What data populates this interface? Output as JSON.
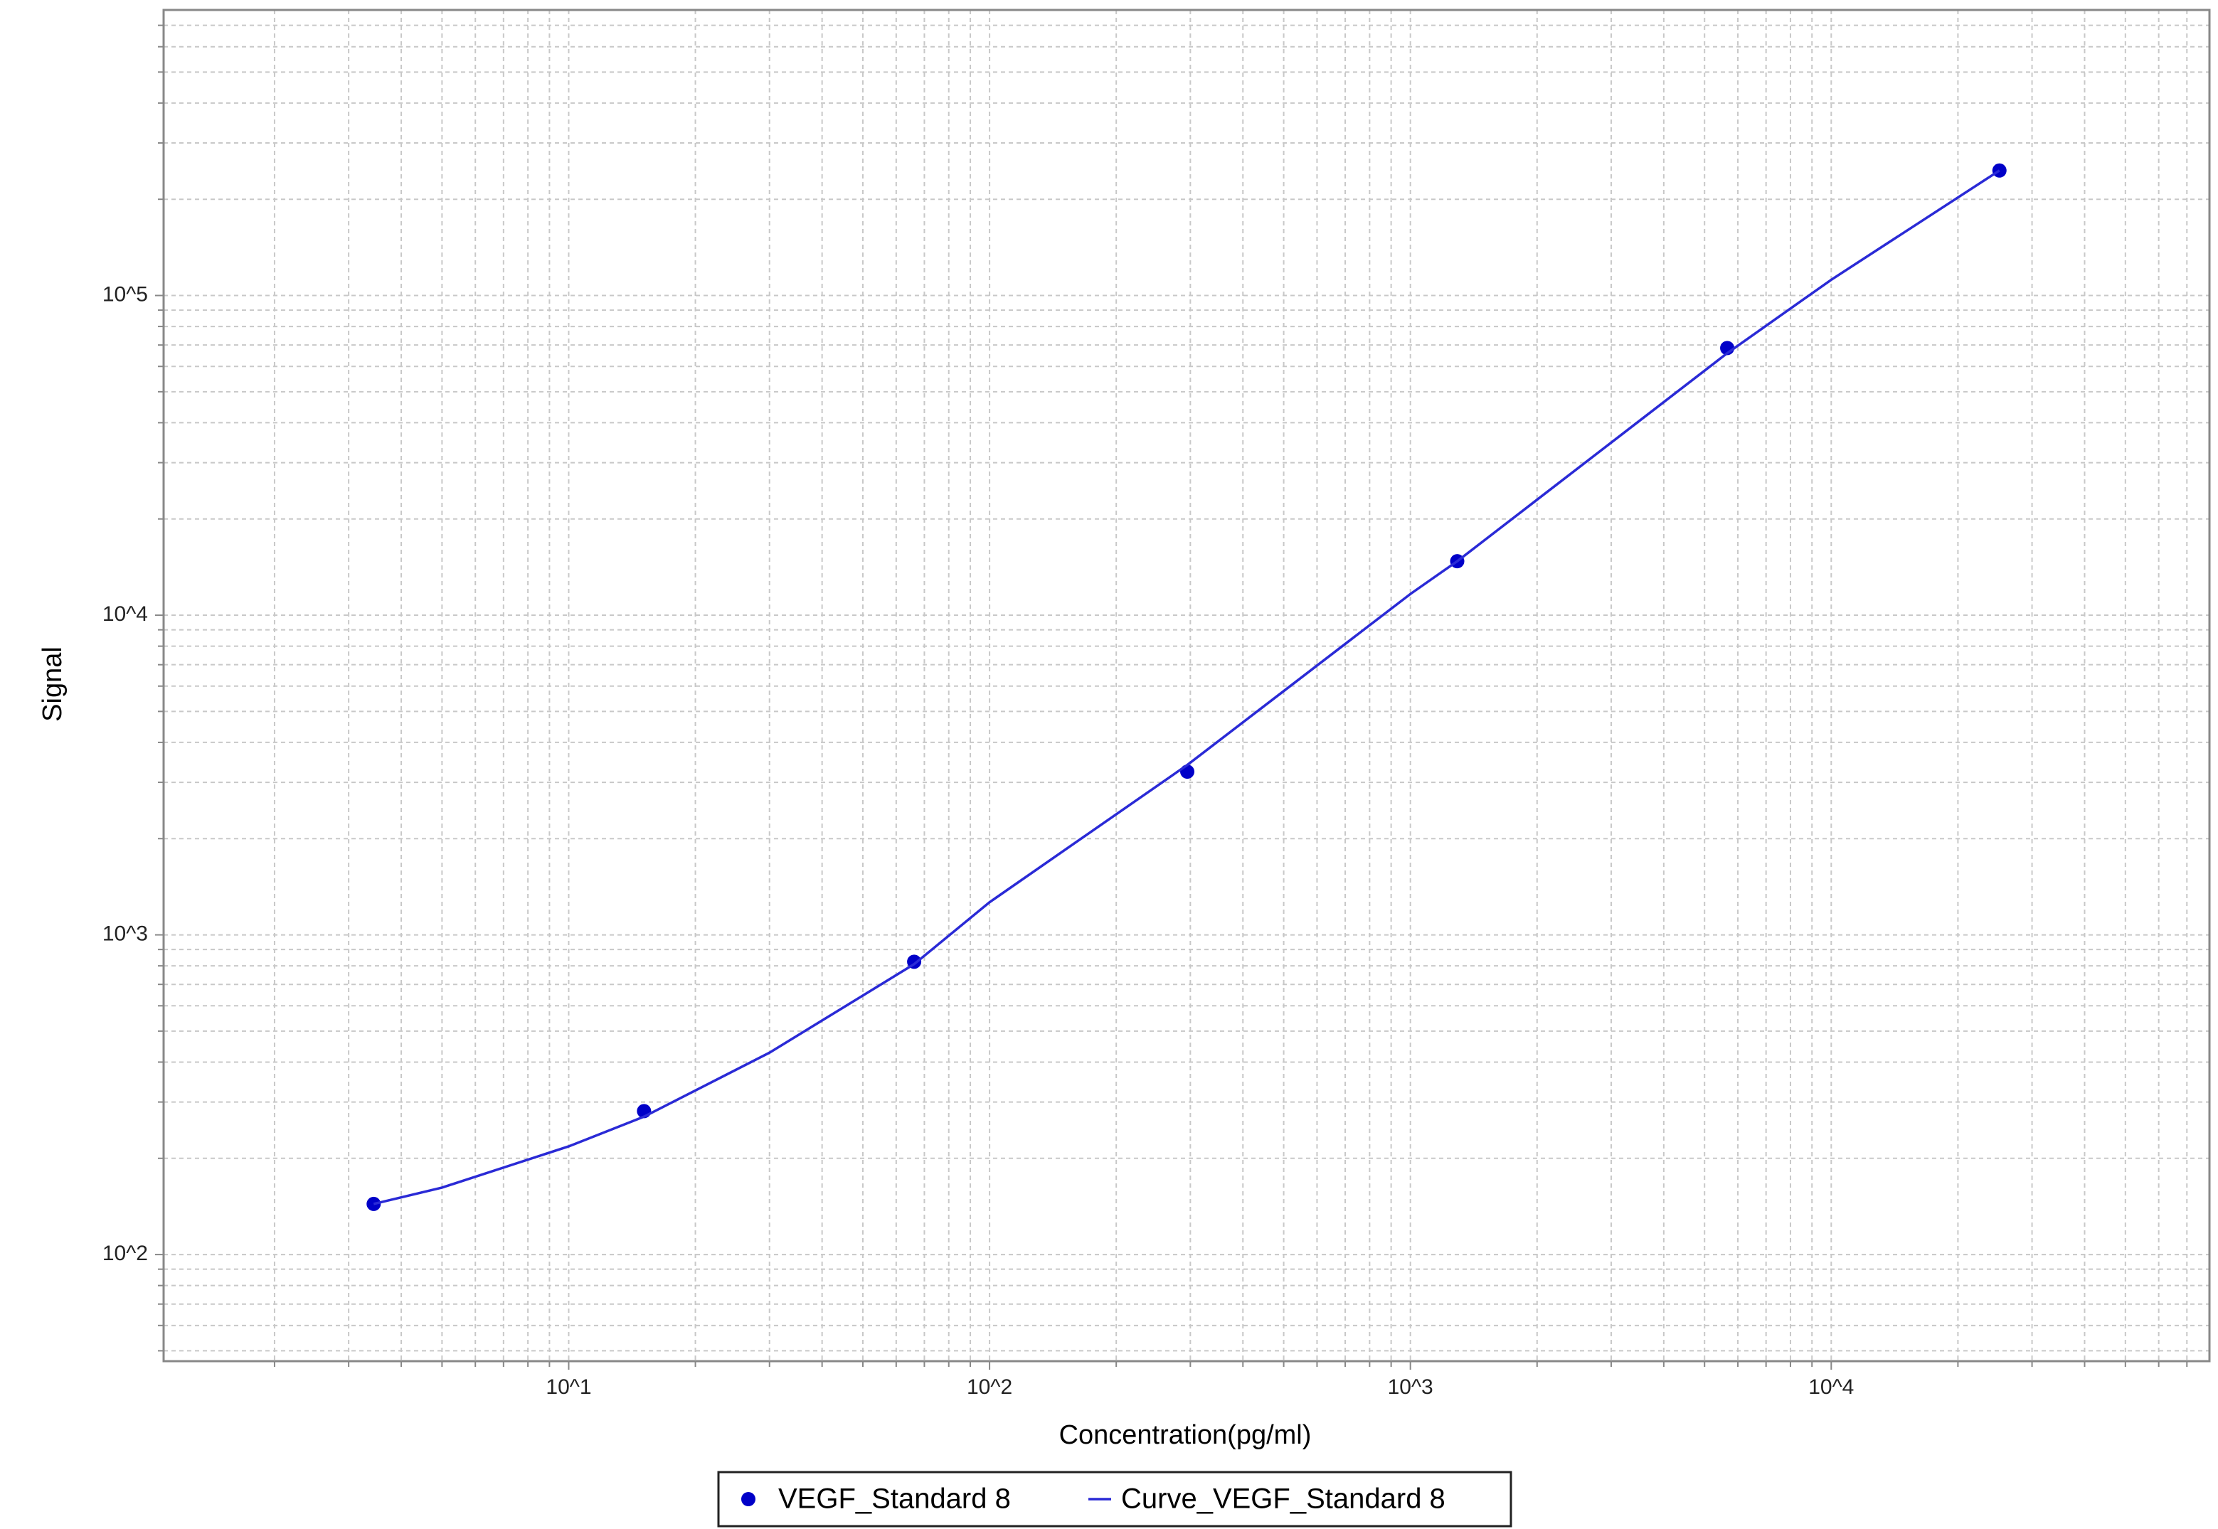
{
  "chart_data": {
    "type": "scatter",
    "x_label": "Concentration(pg/ml)",
    "y_label": "Signal",
    "x_log": true,
    "y_log": true,
    "grid": true,
    "minor_grid": true,
    "legend": "bottom",
    "xlim": [
      1.09,
      79200
    ],
    "ylim": [
      46.4,
      782000
    ],
    "xticks": [
      {
        "value": 10,
        "label": "10^1"
      },
      {
        "value": 100,
        "label": "10^2"
      },
      {
        "value": 1000,
        "label": "10^3"
      },
      {
        "value": 10000,
        "label": "10^4"
      }
    ],
    "yticks": [
      {
        "value": 100,
        "label": "10^2"
      },
      {
        "value": 1000,
        "label": "10^3"
      },
      {
        "value": 10000,
        "label": "10^4"
      },
      {
        "value": 100000,
        "label": "10^5"
      }
    ],
    "series": [
      {
        "name": "VEGF_Standard 8",
        "type": "scatter",
        "color": "#0000c8",
        "x": [
          3.44,
          15.1,
          66.2,
          295,
          1292,
          5660,
          25100
        ],
        "values": [
          144,
          281,
          824,
          3240,
          14750,
          68500,
          246000
        ]
      },
      {
        "name": "Curve_VEGF_Standard 8",
        "type": "line",
        "color": "#2a2ad6",
        "x": [
          3.44,
          5,
          10,
          15.1,
          30,
          66.2,
          100,
          295,
          1000,
          1292,
          5660,
          10000,
          25100
        ],
        "values": [
          144,
          162,
          218,
          270,
          428,
          810,
          1265,
          3400,
          11650,
          14750,
          66000,
          112000,
          246000
        ]
      }
    ]
  }
}
